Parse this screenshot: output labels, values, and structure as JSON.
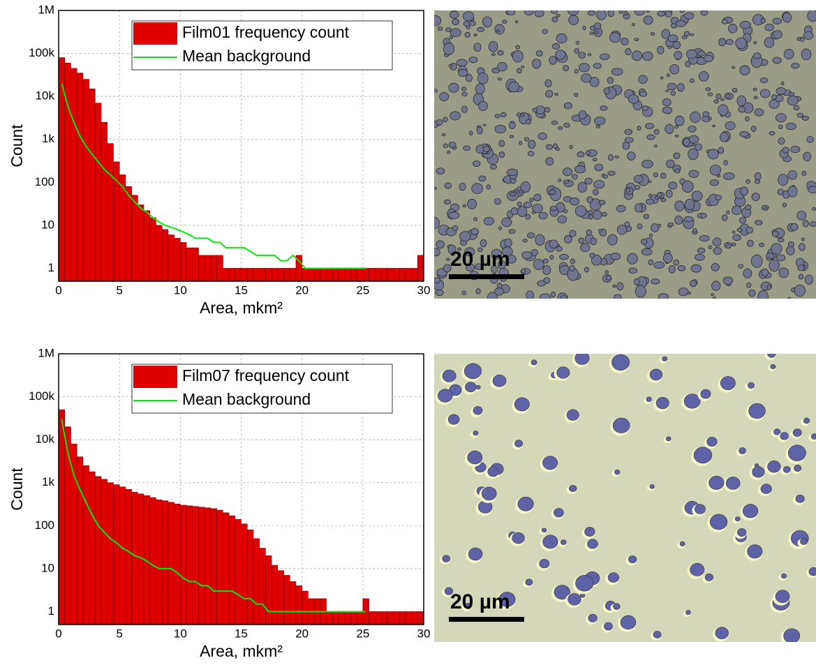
{
  "chart_data": [
    {
      "type": "histogram",
      "log_y": true,
      "grid": true,
      "legend": "upper right",
      "xlabel": "Area, mkm²",
      "ylabel": "Count",
      "xlim": [
        0,
        30
      ],
      "ylim": [
        0.5,
        1000000
      ],
      "xticks": [
        0,
        5,
        10,
        15,
        20,
        25,
        30
      ],
      "yticks": [
        1,
        10,
        100,
        {
          "value": 1000,
          "label": "1k"
        },
        {
          "value": 10000,
          "label": "10k"
        },
        {
          "value": 100000,
          "label": "100k"
        },
        {
          "value": 1000000,
          "label": "1M"
        }
      ],
      "bins": [
        0,
        0.5,
        1,
        1.5,
        2,
        2.5,
        3,
        3.5,
        4,
        4.5,
        5,
        5.5,
        6,
        6.5,
        7,
        7.5,
        8,
        8.5,
        9,
        9.5,
        10,
        10.5,
        11,
        11.5,
        12,
        12.5,
        13,
        13.5,
        14,
        14.5,
        15,
        15.5,
        16,
        16.5,
        17,
        17.5,
        18,
        18.5,
        19,
        19.5,
        20,
        20.5,
        21,
        21.5,
        22,
        22.5,
        23,
        23.5,
        24,
        24.5,
        25,
        25.5,
        26,
        26.5,
        27,
        27.5,
        28,
        28.5,
        29,
        29.5,
        30
      ],
      "x": [
        0.25,
        0.75,
        1.25,
        1.75,
        2.25,
        2.75,
        3.25,
        3.75,
        4.25,
        4.75,
        5.25,
        5.75,
        6.25,
        6.75,
        7.25,
        7.75,
        8.25,
        8.75,
        9.25,
        9.75,
        10.25,
        10.75,
        11.25,
        11.75,
        12.25,
        12.75,
        13.25,
        13.75,
        14.25,
        14.75,
        15.25,
        15.75,
        16.25,
        16.75,
        17.25,
        17.75,
        18.25,
        18.75,
        19.25,
        19.75,
        20.25,
        20.75,
        21.25,
        21.75,
        22.25,
        22.75,
        23.25,
        23.75,
        24.25,
        24.75,
        25.25,
        25.75,
        26.25,
        26.75,
        27.25,
        27.75,
        28.25,
        28.75,
        29.25,
        29.75
      ],
      "series": [
        {
          "name": "Film01 frequency count",
          "type": "histogram",
          "color": "#e00000",
          "values": [
            80000,
            60000,
            45000,
            35000,
            25000,
            15000,
            7000,
            2500,
            800,
            300,
            150,
            80,
            50,
            30,
            22,
            15,
            10,
            8,
            6,
            5,
            4,
            3,
            3,
            2,
            2,
            2,
            2,
            1,
            1,
            1,
            1,
            1,
            1,
            1,
            1,
            1,
            1,
            1,
            1,
            2,
            1,
            1,
            1,
            1,
            1,
            1,
            1,
            1,
            1,
            1,
            1,
            1,
            1,
            1,
            1,
            1,
            1,
            1,
            1,
            2
          ]
        },
        {
          "name": "Mean background",
          "type": "line",
          "color": "#00ee00",
          "values": [
            20000,
            6000,
            2500,
            1200,
            700,
            450,
            300,
            200,
            150,
            110,
            80,
            50,
            35,
            25,
            20,
            15,
            12,
            10,
            9,
            8,
            7,
            6,
            5,
            5,
            5,
            4,
            4,
            3,
            3,
            3,
            3,
            2.5,
            2,
            2,
            2,
            2,
            1.5,
            1.5,
            2,
            1.5,
            1,
            1,
            1,
            1,
            1,
            1,
            1,
            1,
            1,
            1,
            1,
            null,
            null,
            null,
            null,
            null,
            null,
            null,
            null,
            null
          ]
        }
      ]
    },
    {
      "type": "histogram",
      "log_y": true,
      "grid": true,
      "legend": "upper right",
      "xlabel": "Area, mkm²",
      "ylabel": "Count",
      "xlim": [
        0,
        30
      ],
      "ylim": [
        0.5,
        1000000
      ],
      "xticks": [
        0,
        5,
        10,
        15,
        20,
        25,
        30
      ],
      "yticks": [
        1,
        10,
        100,
        {
          "value": 1000,
          "label": "1k"
        },
        {
          "value": 10000,
          "label": "10k"
        },
        {
          "value": 100000,
          "label": "100k"
        },
        {
          "value": 1000000,
          "label": "1M"
        }
      ],
      "bins": [
        0,
        0.5,
        1,
        1.5,
        2,
        2.5,
        3,
        3.5,
        4,
        4.5,
        5,
        5.5,
        6,
        6.5,
        7,
        7.5,
        8,
        8.5,
        9,
        9.5,
        10,
        10.5,
        11,
        11.5,
        12,
        12.5,
        13,
        13.5,
        14,
        14.5,
        15,
        15.5,
        16,
        16.5,
        17,
        17.5,
        18,
        18.5,
        19,
        19.5,
        20,
        20.5,
        21,
        21.5,
        22,
        22.5,
        23,
        23.5,
        24,
        24.5,
        25,
        25.5,
        26,
        26.5,
        27,
        27.5,
        28,
        28.5,
        29,
        29.5,
        30
      ],
      "x": [
        0.25,
        0.75,
        1.25,
        1.75,
        2.25,
        2.75,
        3.25,
        3.75,
        4.25,
        4.75,
        5.25,
        5.75,
        6.25,
        6.75,
        7.25,
        7.75,
        8.25,
        8.75,
        9.25,
        9.75,
        10.25,
        10.75,
        11.25,
        11.75,
        12.25,
        12.75,
        13.25,
        13.75,
        14.25,
        14.75,
        15.25,
        15.75,
        16.25,
        16.75,
        17.25,
        17.75,
        18.25,
        18.75,
        19.25,
        19.75,
        20.25,
        20.75,
        21.25,
        21.75,
        22.25,
        22.75,
        23.25,
        23.75,
        24.25,
        24.75,
        25.25,
        25.75,
        26.25,
        26.75,
        27.25,
        27.75,
        28.25,
        28.75,
        29.25,
        29.75
      ],
      "series": [
        {
          "name": "Film07 frequency count",
          "type": "histogram",
          "color": "#e00000",
          "values": [
            50000,
            20000,
            8000,
            4000,
            2500,
            1800,
            1400,
            1200,
            1000,
            900,
            800,
            700,
            600,
            550,
            500,
            450,
            400,
            380,
            350,
            320,
            300,
            290,
            280,
            270,
            260,
            250,
            230,
            200,
            170,
            140,
            110,
            80,
            50,
            30,
            20,
            12,
            9,
            7,
            5,
            4,
            3,
            2,
            2,
            2,
            1,
            1,
            1,
            1,
            1,
            1,
            2,
            1,
            1,
            1,
            1,
            1,
            1,
            1,
            1,
            1
          ]
        },
        {
          "name": "Mean background",
          "type": "line",
          "color": "#00ee00",
          "values": [
            30000,
            5000,
            1500,
            700,
            350,
            180,
            100,
            70,
            50,
            40,
            30,
            25,
            20,
            18,
            15,
            12,
            10,
            10,
            10,
            8,
            6,
            5,
            5,
            4,
            4,
            3,
            3,
            3,
            3,
            2.5,
            2,
            2,
            1.5,
            1.5,
            1,
            1,
            1,
            1,
            1,
            1,
            1,
            1,
            1,
            1,
            1,
            1,
            1,
            1,
            1,
            1,
            1,
            null,
            null,
            null,
            null,
            null,
            null,
            null,
            null,
            null
          ]
        }
      ]
    }
  ],
  "images": [
    {
      "scale_label": "20 µm"
    },
    {
      "scale_label": "20 µm"
    }
  ]
}
